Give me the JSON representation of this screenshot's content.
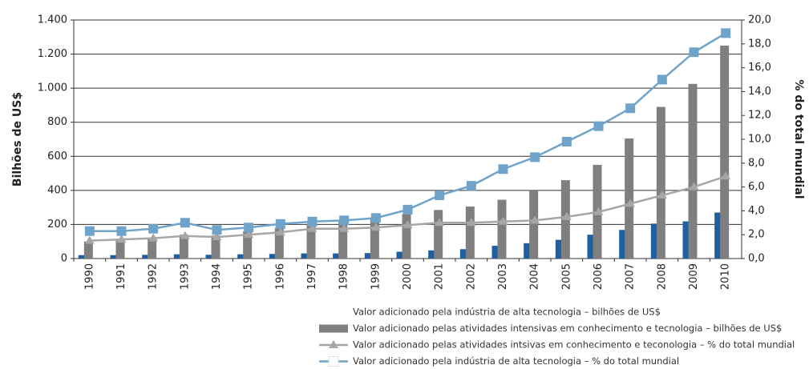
{
  "chart_data": {
    "type": "bar-line",
    "y_label": "Bilhões de  US$",
    "y2_label": "% do total mundial",
    "categories": [
      "1990",
      "1991",
      "1992",
      "1993",
      "1994",
      "1995",
      "1996",
      "1997",
      "1998",
      "1999",
      "2000",
      "2001",
      "2002",
      "2003",
      "2004",
      "2005",
      "2006",
      "2007",
      "2008",
      "2009",
      "2010"
    ],
    "ylim": [
      0,
      1400
    ],
    "yticks": [
      0,
      200,
      400,
      600,
      800,
      {
        "value": 1000,
        "label": "1.000"
      },
      {
        "value": 1200,
        "label": "1.200"
      },
      {
        "value": 1400,
        "label": "1.400"
      }
    ],
    "y2lim": [
      0,
      20
    ],
    "y2ticks": [
      {
        "value": 0,
        "label": "0,0"
      },
      {
        "value": 2,
        "label": "2,0"
      },
      {
        "value": 4,
        "label": "4,0"
      },
      {
        "value": 6,
        "label": "6,0"
      },
      {
        "value": 8,
        "label": "8,0"
      },
      {
        "value": 10,
        "label": "10,0"
      },
      {
        "value": 12,
        "label": "12,0"
      },
      {
        "value": 14,
        "label": "14,0"
      },
      {
        "value": 16,
        "label": "16,0"
      },
      {
        "value": 18,
        "label": "18,0"
      },
      {
        "value": 20,
        "label": "20,0"
      }
    ],
    "grid": true,
    "series": [
      {
        "name": "Valor adicionado pela indústria de alta tecnologia – bilhões de US$",
        "kind": "bar",
        "color": "#1f5fa0",
        "values": [
          20,
          20,
          22,
          25,
          22,
          25,
          27,
          30,
          30,
          32,
          40,
          48,
          55,
          75,
          90,
          110,
          140,
          168,
          205,
          218,
          270
        ]
      },
      {
        "name": "Valor adicionado pelas atividades intensivas em conhecimento e tecnologia – bilhões de US$",
        "kind": "bar",
        "color": "#7f7f7f",
        "values": [
          100,
          105,
          120,
          140,
          135,
          160,
          180,
          205,
          220,
          230,
          260,
          285,
          305,
          345,
          400,
          460,
          550,
          705,
          890,
          1025,
          1250
        ]
      },
      {
        "name": "Valor adicionado pelas atividades intsivas em conhecimento e teconologia – % do total mundial",
        "kind": "line",
        "marker": "triangle",
        "axis": "y2",
        "color": "#a6a6a6",
        "values": [
          1.5,
          1.6,
          1.7,
          1.9,
          1.8,
          2.0,
          2.2,
          2.5,
          2.5,
          2.6,
          2.8,
          3.0,
          3.0,
          3.1,
          3.2,
          3.5,
          3.9,
          4.6,
          5.3,
          6.0,
          6.9
        ]
      },
      {
        "name": "Valor adicionado pela indústria de alta tecnologia – % do total mundial",
        "kind": "line",
        "marker": "square",
        "axis": "y2",
        "color": "#6fa3c9",
        "values": [
          2.3,
          2.3,
          2.5,
          3.0,
          2.4,
          2.6,
          2.9,
          3.1,
          3.2,
          3.4,
          4.1,
          5.3,
          6.1,
          7.5,
          8.5,
          9.8,
          11.1,
          12.6,
          15.0,
          17.3,
          18.9
        ]
      }
    ]
  }
}
